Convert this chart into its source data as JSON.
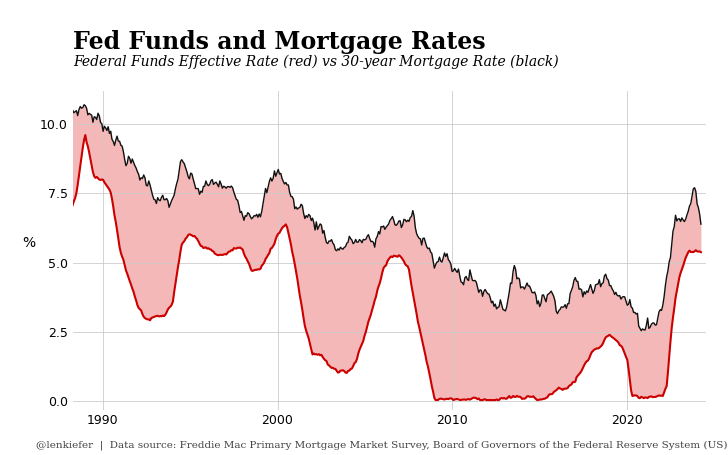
{
  "title": "Fed Funds and Mortgage Rates",
  "subtitle": "Federal Funds Effective Rate (red) vs 30-year Mortgage Rate (black)",
  "footer": "@lenkiefer  |  Data source: Freddie Mac Primary Mortgage Market Survey, Board of Governors of the Federal Reserve System (US)",
  "ylabel": "%",
  "ylim": [
    -0.3,
    11.2
  ],
  "yticks": [
    0.0,
    2.5,
    5.0,
    7.5,
    10.0
  ],
  "background_color": "#ffffff",
  "fill_color": "#f5b8b8",
  "fed_color": "#cc0000",
  "mortgage_color": "#111111",
  "fed_linewidth": 1.5,
  "mortgage_linewidth": 1.0,
  "title_fontsize": 17,
  "subtitle_fontsize": 10,
  "footer_fontsize": 7.5
}
